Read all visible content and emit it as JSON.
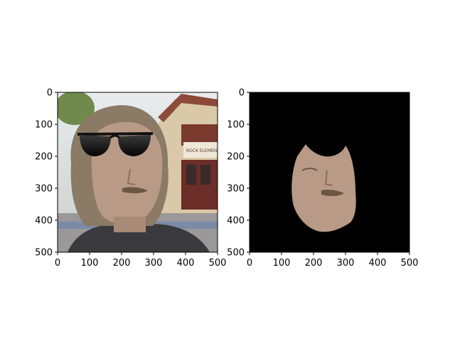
{
  "figure": {
    "panels": [
      {
        "id": "left",
        "image_description": "Photo of a man with shoulder-length hair and moustache, wearing black sunglasses, standing outside a building",
        "xticks": [
          "0",
          "100",
          "200",
          "300",
          "400",
          "500"
        ],
        "yticks": [
          "0",
          "100",
          "200",
          "300",
          "400",
          "500"
        ],
        "xlim": [
          0,
          500
        ],
        "ylim": [
          0,
          500
        ],
        "building_sign": "ROCK ELEMENTARY"
      },
      {
        "id": "right",
        "image_description": "Segmented face region on black background",
        "xticks": [
          "0",
          "100",
          "200",
          "300",
          "400",
          "500"
        ],
        "yticks": [
          "0",
          "100",
          "200",
          "300",
          "400",
          "500"
        ],
        "xlim": [
          0,
          500
        ],
        "ylim": [
          0,
          500
        ]
      }
    ]
  },
  "colors": {
    "background": "#ffffff",
    "mask_background": "#000000",
    "skin": "#b89a86",
    "hair": "#8a7a66",
    "sunglasses": "#101010"
  }
}
